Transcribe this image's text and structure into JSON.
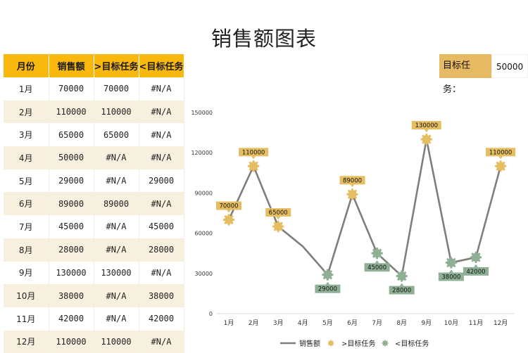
{
  "title": "销售额图表",
  "target": {
    "label": "目标任务：",
    "value": "50000"
  },
  "table": {
    "headers": [
      "月份",
      "销售额",
      ">目标任务",
      "<目标任务"
    ],
    "rows": [
      [
        "1月",
        "70000",
        "70000",
        "#N/A"
      ],
      [
        "2月",
        "110000",
        "110000",
        "#N/A"
      ],
      [
        "3月",
        "65000",
        "65000",
        "#N/A"
      ],
      [
        "4月",
        "50000",
        "#N/A",
        "#N/A"
      ],
      [
        "5月",
        "29000",
        "#N/A",
        "29000"
      ],
      [
        "6月",
        "89000",
        "89000",
        "#N/A"
      ],
      [
        "7月",
        "45000",
        "#N/A",
        "45000"
      ],
      [
        "8月",
        "28000",
        "#N/A",
        "28000"
      ],
      [
        "9月",
        "130000",
        "130000",
        "#N/A"
      ],
      [
        "10月",
        "38000",
        "#N/A",
        "38000"
      ],
      [
        "11月",
        "42000",
        "#N/A",
        "42000"
      ],
      [
        "12月",
        "110000",
        "110000",
        "#N/A"
      ]
    ]
  },
  "colors": {
    "header": "#f8b80e",
    "row_alt": "#f8f0df",
    "target_label_bg": "#e6b963",
    "line": "#7f7f7a",
    "above": "#e6be62",
    "below": "#8fb094",
    "axis": "#d9d9d9"
  },
  "chart_data": {
    "type": "line",
    "title": "",
    "categories": [
      "1月",
      "2月",
      "3月",
      "4月",
      "5月",
      "6月",
      "7月",
      "8月",
      "9月",
      "10月",
      "11月",
      "12月"
    ],
    "series": [
      {
        "name": "销售额",
        "type": "line",
        "values": [
          70000,
          110000,
          65000,
          50000,
          29000,
          89000,
          45000,
          28000,
          130000,
          38000,
          42000,
          110000
        ]
      },
      {
        "name": ">目标任务",
        "type": "marker",
        "values": [
          70000,
          110000,
          65000,
          null,
          null,
          89000,
          null,
          null,
          130000,
          null,
          null,
          110000
        ]
      },
      {
        "name": "<目标任务",
        "type": "marker",
        "values": [
          null,
          null,
          null,
          null,
          29000,
          null,
          45000,
          28000,
          null,
          38000,
          42000,
          null
        ]
      }
    ],
    "yticks": [
      "0",
      "30000",
      "60000",
      "90000",
      "120000",
      "150000"
    ],
    "ylim": [
      0,
      150000
    ],
    "xlabel": "",
    "ylabel": "",
    "grid": false,
    "legend_position": "bottom",
    "legend": [
      "销售额",
      ">目标任务",
      "<目标任务"
    ]
  }
}
